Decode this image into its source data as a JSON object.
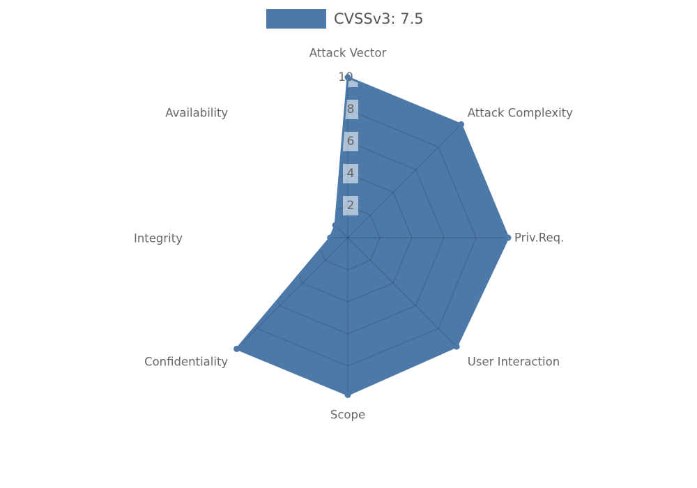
{
  "figure": {
    "kind": "radar-chart",
    "background": "#FFFFFF"
  },
  "legend": {
    "label": "CVSSv3: 7.5",
    "swatch_color": "#4D79A9",
    "text_color": "#555555"
  },
  "chart_data": {
    "type": "radar",
    "title": "",
    "categories": [
      "Attack Vector",
      "Attack Complexity",
      "Priv.Req.",
      "User Interaction",
      "Scope",
      "Confidentiality",
      "Integrity",
      "Availability"
    ],
    "series": [
      {
        "name": "CVSSv3: 7.5",
        "color": "#4D79A9",
        "values": [
          10,
          10,
          10,
          9.6,
          9.8,
          9.8,
          1.1,
          1.1
        ]
      }
    ],
    "axis_order": "clockwise-from-top",
    "num_axes": 8,
    "ticks": [
      2,
      4,
      6,
      8,
      10
    ],
    "tick_axis": "top",
    "range": [
      0,
      10
    ],
    "grid": "polygonal-web-visible-only-inside-fill",
    "legend_position": "top-center",
    "markers": "dot-at-each-vertex",
    "colors": {
      "fill": "#4D79A9",
      "grid_line": "rgba(0,0,0,0.14)",
      "axis_label": "#666666",
      "tick_label": "#666666",
      "tick_box": "rgba(255,255,255,0.55)"
    }
  }
}
